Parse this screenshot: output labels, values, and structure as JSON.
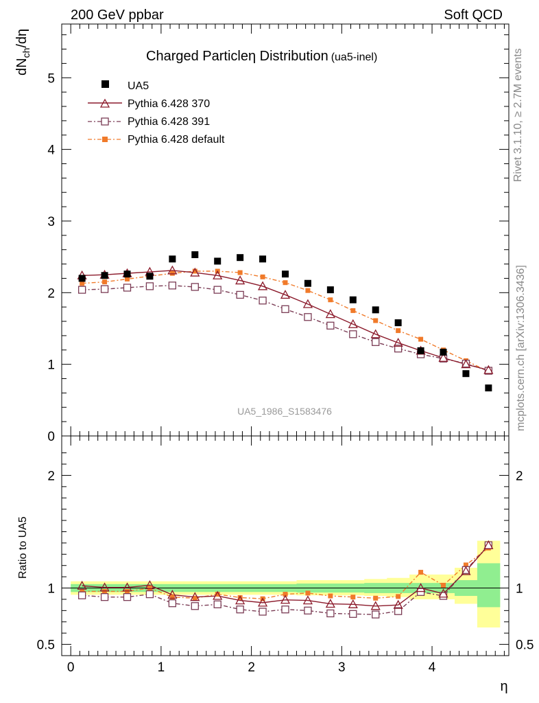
{
  "header": {
    "left": "200 GeV ppbar",
    "right": "Soft QCD",
    "rivet": "Rivet 3.1.10, ≥ 2.7M events",
    "mcplots": "mcplots.cern.ch [arXiv:1306.3436]"
  },
  "chart_data": {
    "type": "scatter",
    "title_main": "Charged Particle",
    "title_eta": "η",
    "title_main2": " Distribution",
    "title_sub": "(ua5-inel)",
    "watermark": "UA5_1986_S1583476",
    "ylabel_main": "dN",
    "ylabel_sub": "ch",
    "ylabel_tail": "/dη",
    "ylabel_ratio": "Ratio to UA5",
    "xlabel": "η",
    "xlim": [
      -0.1,
      4.85
    ],
    "ylim_main": [
      0,
      5.75
    ],
    "ylim_ratio": [
      0.4,
      2.35
    ],
    "x_ticks": [
      "0",
      "1",
      "2",
      "3",
      "4"
    ],
    "y_ticks_main": [
      "0",
      "1",
      "2",
      "3",
      "4",
      "5"
    ],
    "y_ticks_ratio": [
      "0.5",
      "1",
      "2"
    ],
    "x": [
      0.125,
      0.375,
      0.625,
      0.875,
      1.125,
      1.375,
      1.625,
      1.875,
      2.125,
      2.375,
      2.625,
      2.875,
      3.125,
      3.375,
      3.625,
      3.875,
      4.125,
      4.375,
      4.625
    ],
    "series": [
      {
        "name": "UA5",
        "color": "#000000",
        "marker": "filled-square",
        "values": [
          2.2,
          2.24,
          2.26,
          2.23,
          2.47,
          2.53,
          2.44,
          2.49,
          2.47,
          2.26,
          2.13,
          2.04,
          1.9,
          1.76,
          1.58,
          1.19,
          1.17,
          0.87,
          0.67
        ]
      },
      {
        "name": "Pythia 6.428 370",
        "color": "#8b1a2b",
        "marker": "open-triangle",
        "line": "solid",
        "values": [
          2.24,
          2.25,
          2.27,
          2.29,
          2.31,
          2.28,
          2.24,
          2.17,
          2.09,
          1.97,
          1.84,
          1.7,
          1.56,
          1.42,
          1.3,
          1.19,
          1.09,
          1.0,
          0.92
        ]
      },
      {
        "name": "Pythia 6.428 391",
        "color": "#7a3b54",
        "marker": "open-square",
        "line": "dashdot",
        "values": [
          2.04,
          2.05,
          2.07,
          2.09,
          2.1,
          2.08,
          2.04,
          1.97,
          1.89,
          1.77,
          1.66,
          1.54,
          1.42,
          1.31,
          1.22,
          1.14,
          1.08,
          1.01,
          0.91
        ]
      },
      {
        "name": "Pythia 6.428 default",
        "color": "#f07a2a",
        "marker": "filled-square-small",
        "line": "dashdot",
        "values": [
          2.13,
          2.15,
          2.19,
          2.23,
          2.27,
          2.3,
          2.3,
          2.28,
          2.22,
          2.14,
          2.03,
          1.9,
          1.75,
          1.61,
          1.47,
          1.35,
          1.2,
          1.05,
          0.9
        ]
      }
    ],
    "ratio_series": [
      {
        "name": "Pythia 6.428 370",
        "values": [
          1.02,
          1.005,
          1.005,
          1.025,
          0.94,
          0.92,
          0.93,
          0.89,
          0.87,
          0.895,
          0.89,
          0.86,
          0.855,
          0.84,
          0.85,
          1.0,
          0.95,
          1.15,
          1.38
        ]
      },
      {
        "name": "Pythia 6.428 391",
        "values": [
          0.935,
          0.92,
          0.92,
          0.945,
          0.865,
          0.84,
          0.855,
          0.81,
          0.79,
          0.81,
          0.8,
          0.775,
          0.77,
          0.765,
          0.795,
          0.965,
          0.93,
          1.16,
          1.38
        ]
      },
      {
        "name": "Pythia 6.428 default",
        "values": [
          0.97,
          0.97,
          0.97,
          1.0,
          0.92,
          0.91,
          0.945,
          0.915,
          0.905,
          0.945,
          0.955,
          0.93,
          0.92,
          0.91,
          0.925,
          1.14,
          1.025,
          1.205,
          1.355
        ]
      }
    ],
    "ratio_band_inner": [
      [
        0.965,
        1.035
      ],
      [
        0.965,
        1.035
      ],
      [
        0.965,
        1.035
      ],
      [
        0.965,
        1.035
      ],
      [
        0.965,
        1.035
      ],
      [
        0.965,
        1.035
      ],
      [
        0.965,
        1.035
      ],
      [
        0.965,
        1.035
      ],
      [
        0.965,
        1.035
      ],
      [
        0.965,
        1.035
      ],
      [
        0.96,
        1.04
      ],
      [
        0.96,
        1.04
      ],
      [
        0.96,
        1.04
      ],
      [
        0.955,
        1.045
      ],
      [
        0.955,
        1.045
      ],
      [
        0.955,
        1.045
      ],
      [
        0.955,
        1.045
      ],
      [
        0.93,
        1.07
      ],
      [
        0.83,
        1.22
      ]
    ],
    "ratio_band_outer": [
      [
        0.94,
        1.06
      ],
      [
        0.94,
        1.06
      ],
      [
        0.94,
        1.06
      ],
      [
        0.94,
        1.06
      ],
      [
        0.94,
        1.06
      ],
      [
        0.94,
        1.06
      ],
      [
        0.94,
        1.06
      ],
      [
        0.94,
        1.06
      ],
      [
        0.94,
        1.06
      ],
      [
        0.94,
        1.06
      ],
      [
        0.935,
        1.07
      ],
      [
        0.935,
        1.07
      ],
      [
        0.935,
        1.07
      ],
      [
        0.93,
        1.08
      ],
      [
        0.92,
        1.09
      ],
      [
        0.9,
        1.12
      ],
      [
        0.9,
        1.12
      ],
      [
        0.86,
        1.18
      ],
      [
        0.65,
        1.42
      ]
    ]
  }
}
